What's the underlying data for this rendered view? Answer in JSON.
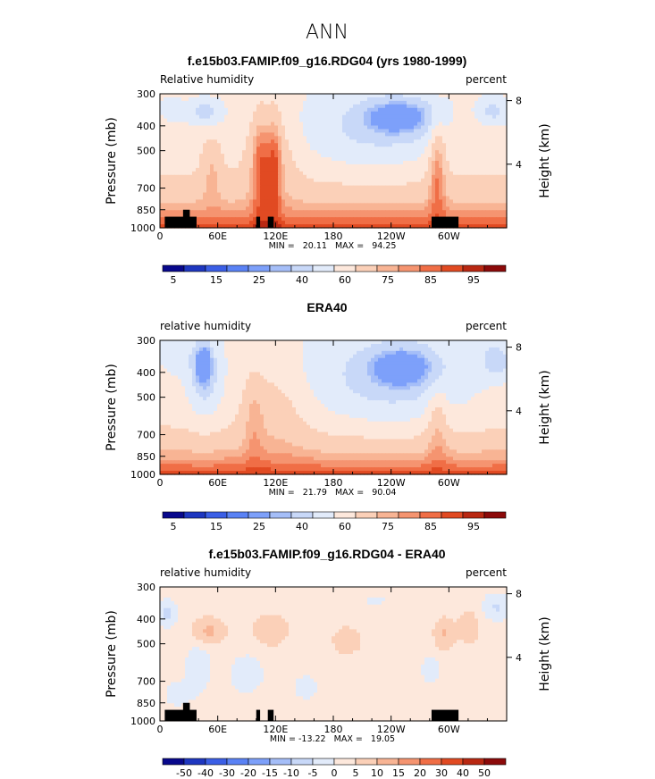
{
  "figure": {
    "title": "ANN"
  },
  "colors": {
    "rh_scale": [
      "#08088c",
      "#1e37c0",
      "#3b5fe6",
      "#5a82f5",
      "#7da0fa",
      "#a5bef8",
      "#c8d8f8",
      "#e2ebfa",
      "#fde8dc",
      "#fbd0b8",
      "#f8b494",
      "#f59470",
      "#f06e46",
      "#e14a22",
      "#b92812",
      "#8c0a0a"
    ],
    "diff_scale": [
      "#08088c",
      "#1e37c0",
      "#3b5fe6",
      "#5a82f5",
      "#7da0fa",
      "#a5bef8",
      "#c8d8f8",
      "#e2ebfa",
      "#fde8dc",
      "#fbd0b8",
      "#f8b494",
      "#f59470",
      "#f06e46",
      "#e14a22",
      "#b92812",
      "#8c0a0a"
    ],
    "topography": "#000000"
  },
  "chart_data": [
    {
      "type": "heatmap",
      "title": "f.e15b03.FAMIP.f09_g16.RDG04 (yrs 1980-1999)",
      "left_label": "Relative humidity",
      "right_label": "percent",
      "xlabel": "",
      "ylabel": "Pressure (mb)",
      "y2label": "Height (km)",
      "xticks": [
        "0",
        "60E",
        "120E",
        "180",
        "120W",
        "60W"
      ],
      "xtick_values": [
        0,
        60,
        120,
        180,
        240,
        300
      ],
      "xlim": [
        0,
        360
      ],
      "yticks": [
        "300",
        "400",
        "500",
        "700",
        "850",
        "1000"
      ],
      "ytick_values": [
        300,
        400,
        500,
        700,
        850,
        1000
      ],
      "ylim": [
        1000,
        300
      ],
      "y2ticks": [
        "8",
        "4"
      ],
      "y2tick_values": [
        8,
        4
      ],
      "minmax_text": "MIN =   20.11   MAX =   94.25",
      "min": 20.11,
      "max": 94.25,
      "colorbar_labels": [
        "5",
        "15",
        "25",
        "40",
        "60",
        "75",
        "85",
        "95"
      ],
      "show_topography": true
    },
    {
      "type": "heatmap",
      "title": "ERA40",
      "left_label": "relative humidity",
      "right_label": "percent",
      "xlabel": "",
      "ylabel": "Pressure (mb)",
      "y2label": "Height (km)",
      "xticks": [
        "0",
        "60E",
        "120E",
        "180",
        "120W",
        "60W"
      ],
      "xtick_values": [
        0,
        60,
        120,
        180,
        240,
        300
      ],
      "xlim": [
        0,
        360
      ],
      "yticks": [
        "300",
        "400",
        "500",
        "700",
        "850",
        "1000"
      ],
      "ytick_values": [
        300,
        400,
        500,
        700,
        850,
        1000
      ],
      "ylim": [
        1000,
        300
      ],
      "y2ticks": [
        "8",
        "4"
      ],
      "y2tick_values": [
        8,
        4
      ],
      "minmax_text": "MIN =   21.79   MAX =   90.04",
      "min": 21.79,
      "max": 90.04,
      "colorbar_labels": [
        "5",
        "15",
        "25",
        "40",
        "60",
        "75",
        "85",
        "95"
      ],
      "show_topography": false
    },
    {
      "type": "heatmap",
      "title": "f.e15b03.FAMIP.f09_g16.RDG04 - ERA40",
      "left_label": "relative humidity",
      "right_label": "percent",
      "xlabel": "",
      "ylabel": "Pressure (mb)",
      "y2label": "Height (km)",
      "xticks": [
        "0",
        "60E",
        "120E",
        "180",
        "120W",
        "60W"
      ],
      "xtick_values": [
        0,
        60,
        120,
        180,
        240,
        300
      ],
      "xlim": [
        0,
        360
      ],
      "yticks": [
        "300",
        "400",
        "500",
        "700",
        "850",
        "1000"
      ],
      "ytick_values": [
        300,
        400,
        500,
        700,
        850,
        1000
      ],
      "ylim": [
        1000,
        300
      ],
      "y2ticks": [
        "8",
        "4"
      ],
      "y2tick_values": [
        8,
        4
      ],
      "minmax_text": "MIN = -13.22   MAX =   19.05",
      "min": -13.22,
      "max": 19.05,
      "colorbar_labels": [
        "-50",
        "-40",
        "-30",
        "-20",
        "-15",
        "-10",
        "-5",
        "0",
        "5",
        "10",
        "15",
        "20",
        "30",
        "40",
        "50"
      ],
      "show_topography": true
    }
  ]
}
